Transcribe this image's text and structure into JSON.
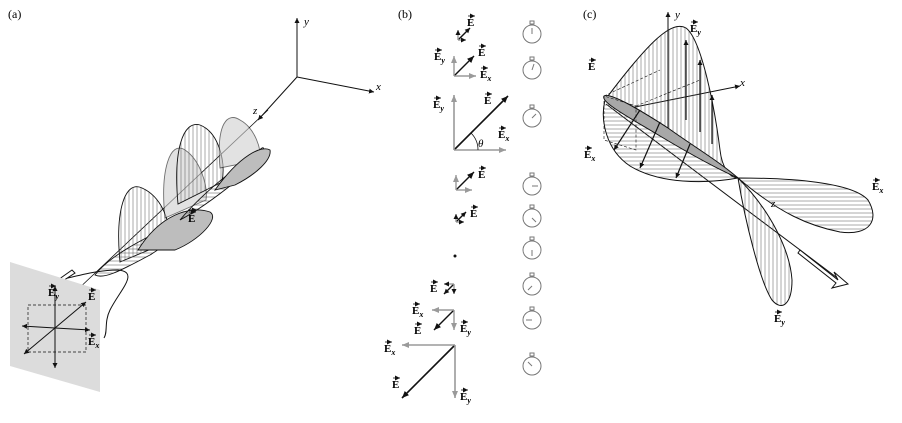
{
  "panels": [
    {
      "id": "a",
      "label": "(a)"
    },
    {
      "id": "b",
      "label": "(b)"
    },
    {
      "id": "c",
      "label": "(c)"
    }
  ],
  "axes": {
    "x": "x",
    "y": "y",
    "z": "z"
  },
  "vectors": {
    "main": "E",
    "x_sub": "x",
    "y_sub": "y"
  },
  "angle": "θ",
  "colors": {
    "line": "#111111",
    "grey": "#9a9a9a",
    "shade": "#cfcfcf",
    "plane": "#d9d9d9"
  },
  "icons": [
    "stopwatch-icon"
  ]
}
